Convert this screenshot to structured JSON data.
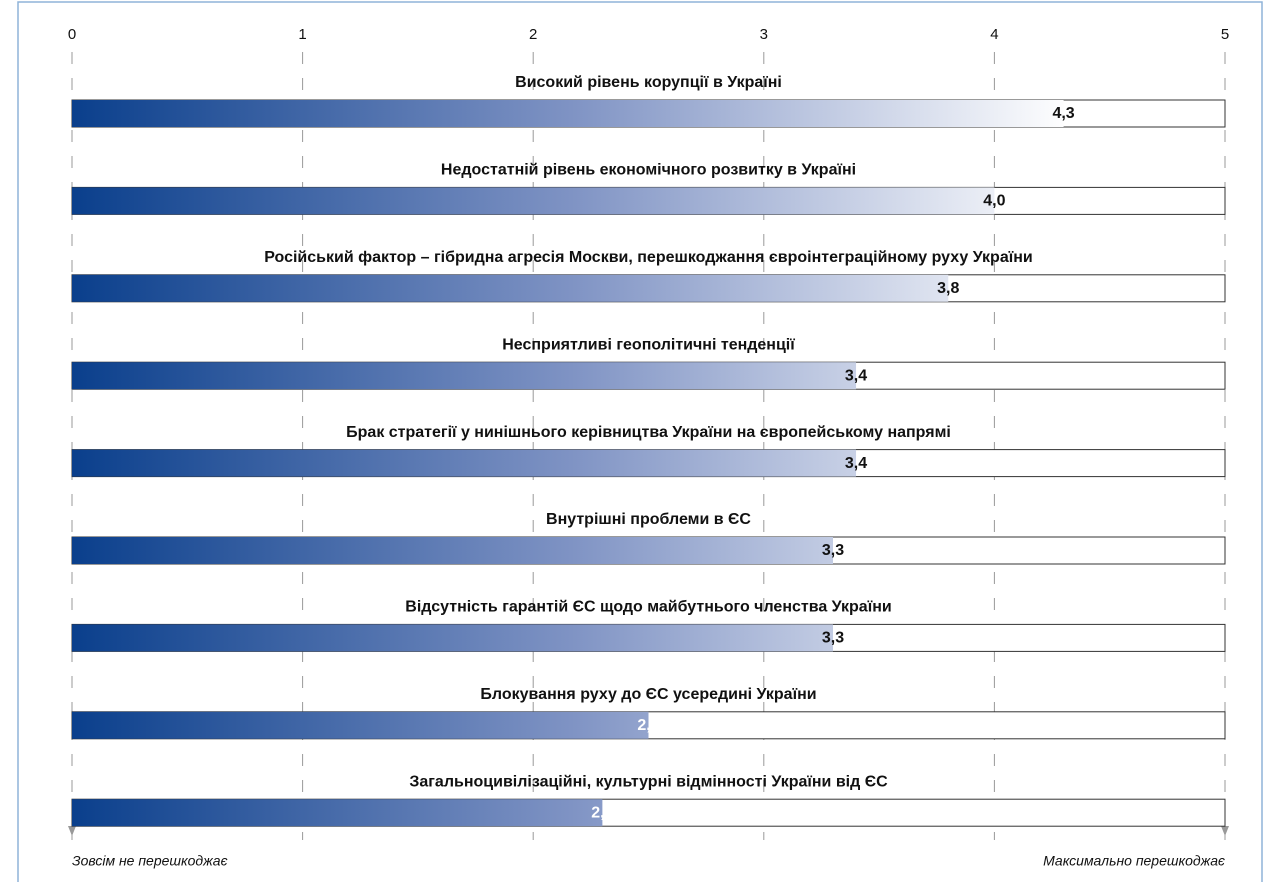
{
  "chart_data": {
    "type": "bar",
    "orientation": "horizontal",
    "categories": [
      "Високий рівень корупції в Україні",
      "Недостатній рівень економічного розвитку в Україні",
      "Російський фактор – гібридна агресія Москви, перешкоджання євроінтеграційному руху України",
      "Несприятливі геополітичні тенденції",
      "Брак стратегії у нинішнього керівництва України на європейському напрямі",
      "Внутрішні проблеми в ЄС",
      "Відсутність гарантій ЄС щодо майбутнього членства України",
      "Блокування руху до ЄС усередині України",
      "Загальноцивілізаційні, культурні відмінності України від ЄС"
    ],
    "values": [
      4.3,
      4.0,
      3.8,
      3.4,
      3.4,
      3.3,
      3.3,
      2.5,
      2.3
    ],
    "value_labels": [
      "4,3",
      "4,0",
      "3,8",
      "3,4",
      "3,4",
      "3,3",
      "3,3",
      "2,5",
      "2,3"
    ],
    "color": "#0a3f8c",
    "xlim": [
      0,
      5
    ],
    "xticks": [
      0,
      1,
      2,
      3,
      4,
      5
    ],
    "grid": true,
    "annotations": [
      "Зовсім не перешкоджає",
      "Максимально перешкоджає"
    ]
  }
}
